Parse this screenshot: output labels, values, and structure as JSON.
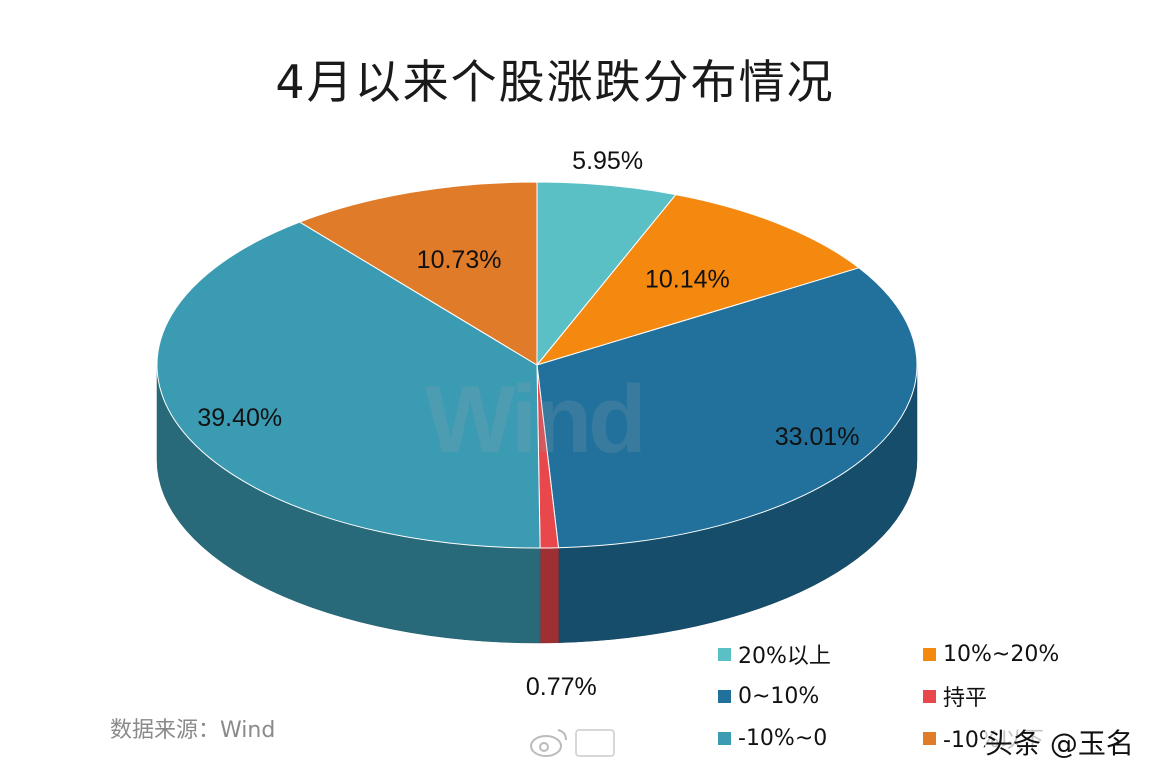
{
  "chart_data": {
    "type": "pie",
    "title": "4月以来个股涨跌分布情况",
    "slices": [
      {
        "name": "20%以上",
        "value": 5.95,
        "label": "5.95%",
        "color": "#5bbfc6"
      },
      {
        "name": "10%~20%",
        "value": 10.14,
        "label": "10.14%",
        "color": "#f5890f"
      },
      {
        "name": "0~10%",
        "value": 33.01,
        "label": "33.01%",
        "color": "#21719c"
      },
      {
        "name": "持平",
        "value": 0.77,
        "label": "0.77%",
        "color": "#e8474c"
      },
      {
        "name": "-10%~0",
        "value": 39.4,
        "label": "39.40%",
        "color": "#3b9bb3"
      },
      {
        "name": "-10%以下",
        "value": 10.73,
        "label": "10.73%",
        "color": "#e07b2a"
      }
    ],
    "legend_placement": "bottom-right"
  },
  "legend": [
    {
      "label": "20%以上",
      "color": "#5bbfc6"
    },
    {
      "label": "10%~20%",
      "color": "#f5890f"
    },
    {
      "label": "0~10%",
      "color": "#21719c"
    },
    {
      "label": "持平",
      "color": "#e8474c"
    },
    {
      "label": "-10%~0",
      "color": "#3b9bb3"
    },
    {
      "label": "-10%以下",
      "color": "#e07b2a"
    }
  ],
  "source": "数据来源：Wind",
  "watermark": "Wind",
  "credit": "头条 @玉名"
}
